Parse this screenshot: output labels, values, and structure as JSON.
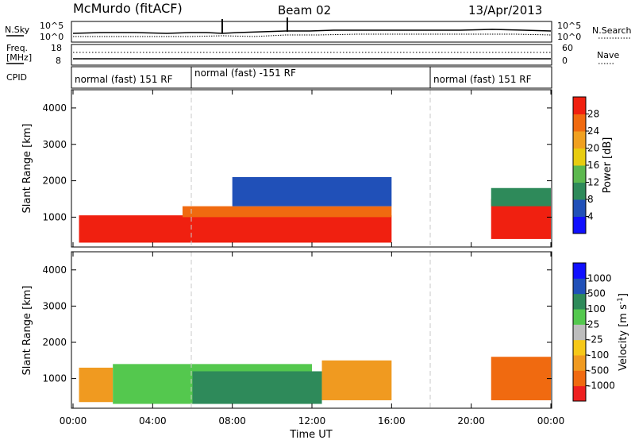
{
  "header": {
    "station": "McMurdo (fitACF)",
    "beam": "Beam 02",
    "date": "13/Apr/2013"
  },
  "top_strip": {
    "noise": {
      "left_label": "N.Sky",
      "right_label": "N.Search",
      "left_ticks": [
        "10^5",
        "10^0"
      ],
      "right_ticks": [
        "10^5",
        "10^0"
      ]
    },
    "freq": {
      "left_label_line1": "Freq.",
      "left_label_line2": "[MHz]",
      "right_label": "Nave",
      "left_ticks": [
        "18",
        "8"
      ],
      "right_ticks": [
        "60",
        "0"
      ]
    },
    "cpid": {
      "label": "CPID",
      "segments": [
        {
          "text": "normal (fast) 151 RF",
          "start_h": 0,
          "end_h": 6
        },
        {
          "text": "normal (fast) -151 RF",
          "start_h": 6,
          "end_h": 18
        },
        {
          "text": "normal (fast) 151 RF",
          "start_h": 18,
          "end_h": 24
        }
      ]
    }
  },
  "chart_data": [
    {
      "type": "heatmap",
      "name": "power-panel",
      "ylabel": "Slant Range [km]",
      "yticks": [
        1000,
        2000,
        3000,
        4000
      ],
      "ylim": [
        180,
        4500
      ],
      "x_range_hours": [
        0,
        24
      ],
      "colorbar": {
        "label": "Power [dB]",
        "ticks": [
          "4",
          "8",
          "12",
          "16",
          "20",
          "24",
          "28"
        ],
        "tick_values": [
          4,
          8,
          12,
          16,
          20,
          24,
          28
        ],
        "range": [
          0,
          32
        ],
        "colors": [
          "#1010ff",
          "#2050b8",
          "#2e8a5a",
          "#5cb84e",
          "#e8cc10",
          "#f0a020",
          "#f06a10",
          "#f02010"
        ]
      },
      "regions": [
        {
          "start_h": 0.3,
          "end_h": 16.0,
          "color": "#f02010",
          "range_km": [
            300,
            1050
          ]
        },
        {
          "start_h": 5.5,
          "end_h": 16.0,
          "color": "#f06a10",
          "range_km": [
            1000,
            1300
          ]
        },
        {
          "start_h": 8.0,
          "end_h": 16.0,
          "color": "#2050b8",
          "range_km": [
            1300,
            2100
          ]
        },
        {
          "start_h": 21.0,
          "end_h": 24.0,
          "color": "#f02010",
          "range_km": [
            400,
            1500
          ]
        },
        {
          "start_h": 21.0,
          "end_h": 24.0,
          "color": "#2e8a5a",
          "range_km": [
            1300,
            1800
          ]
        }
      ]
    },
    {
      "type": "heatmap",
      "name": "velocity-panel",
      "ylabel": "Slant Range [km]",
      "yticks": [
        1000,
        2000,
        3000,
        4000
      ],
      "ylim": [
        180,
        4500
      ],
      "x_range_hours": [
        0,
        24
      ],
      "xlabel": "Time UT",
      "xticks": [
        "00:00",
        "04:00",
        "08:00",
        "12:00",
        "16:00",
        "20:00",
        "00:00"
      ],
      "colorbar": {
        "label_main": "Velocity  [m s",
        "label_sup": "-1",
        "label_end": "]",
        "ticks": [
          "-1000",
          "-500",
          "-100",
          "-25",
          "25",
          "100",
          "500",
          "1000"
        ],
        "colors": [
          "#ee2020",
          "#f06a10",
          "#f09a20",
          "#f6c818",
          "#bdbdbd",
          "#54c84e",
          "#2e8a5a",
          "#2050b8",
          "#1010ff"
        ]
      },
      "regions": [
        {
          "start_h": 0.3,
          "end_h": 2.0,
          "color": "#f09a20",
          "range_km": [
            350,
            1300
          ]
        },
        {
          "start_h": 2.0,
          "end_h": 12.0,
          "color": "#54c84e",
          "range_km": [
            300,
            1400
          ]
        },
        {
          "start_h": 6.0,
          "end_h": 12.5,
          "color": "#2e8a5a",
          "range_km": [
            300,
            1200
          ]
        },
        {
          "start_h": 12.5,
          "end_h": 16.0,
          "color": "#f09a20",
          "range_km": [
            400,
            1500
          ]
        },
        {
          "start_h": 21.0,
          "end_h": 24.0,
          "color": "#f06a10",
          "range_km": [
            400,
            1600
          ]
        }
      ]
    }
  ]
}
